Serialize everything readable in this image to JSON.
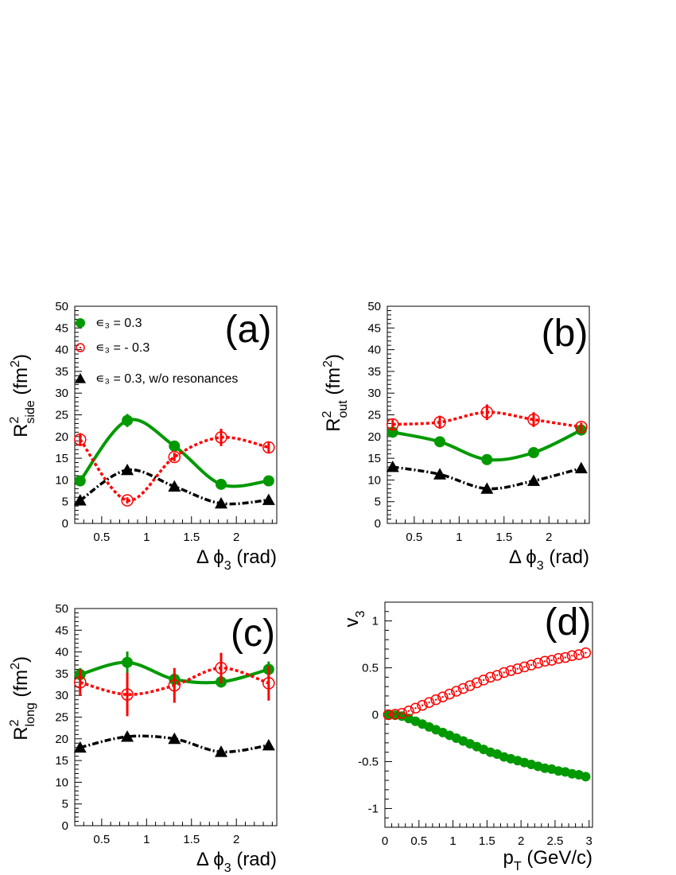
{
  "chart_data": [
    {
      "panel_label": "(a)",
      "type": "scatter",
      "xlabel": {
        "main": "Δ ϕ",
        "sub": "3",
        "rest": " (rad)"
      },
      "ylabel": {
        "main": "R",
        "sup": "2",
        "sub": "side",
        "rest": "  (fm",
        "sup2": "2",
        "close": ")"
      },
      "xlim": [
        0.2,
        2.45
      ],
      "ylim": [
        0,
        50
      ],
      "xticks": [
        0.5,
        1,
        1.5,
        2
      ],
      "xtick_labels": [
        "0.5",
        "1",
        "1.5",
        "2"
      ],
      "yticks": [
        0,
        5,
        10,
        15,
        20,
        25,
        30,
        35,
        40,
        45,
        50
      ],
      "ytick_labels": [
        "0",
        "5",
        "10",
        "15",
        "20",
        "25",
        "30",
        "35",
        "40",
        "45",
        "50"
      ],
      "legend": {
        "position": "top-left",
        "entries": [
          {
            "label": "∊₃ = 0.3",
            "series": 0
          },
          {
            "label": "∊₃ = - 0.3",
            "series": 1
          },
          {
            "label": "∊₃ = 0.3, w/o resonances",
            "series": 2
          }
        ]
      },
      "series": [
        {
          "color": "#009900",
          "marker": "filled-circle",
          "line": "solid",
          "x": [
            0.26,
            0.785,
            1.31,
            1.83,
            2.36
          ],
          "y": [
            9.8,
            23.7,
            17.8,
            9.0,
            9.8
          ],
          "yerr": [
            0.8,
            1.5,
            0.8,
            0.7,
            0.8
          ]
        },
        {
          "color": "#ff0000",
          "marker": "open-circle",
          "line": "dotted",
          "x": [
            0.26,
            0.785,
            1.31,
            1.83,
            2.36
          ],
          "y": [
            19.3,
            5.3,
            15.3,
            19.8,
            17.5
          ],
          "yerr": [
            1.5,
            0.7,
            1.0,
            2.0,
            1.3
          ]
        },
        {
          "color": "#000000",
          "marker": "filled-triangle",
          "line": "dashdot",
          "x": [
            0.26,
            0.785,
            1.31,
            1.83,
            2.36
          ],
          "y": [
            5.3,
            12.3,
            8.5,
            4.6,
            5.4
          ],
          "yerr": [
            0,
            0,
            0,
            0,
            0
          ]
        }
      ]
    },
    {
      "panel_label": "(b)",
      "type": "scatter",
      "xlabel": {
        "main": "Δ ϕ",
        "sub": "3",
        "rest": " (rad)"
      },
      "ylabel": {
        "main": "R",
        "sup": "2",
        "sub": "out",
        "rest": "  (fm",
        "sup2": "2",
        "close": ")"
      },
      "xlim": [
        0.2,
        2.45
      ],
      "ylim": [
        0,
        50
      ],
      "xticks": [
        0.5,
        1,
        1.5,
        2
      ],
      "xtick_labels": [
        "0.5",
        "1",
        "1.5",
        "2"
      ],
      "yticks": [
        0,
        5,
        10,
        15,
        20,
        25,
        30,
        35,
        40,
        45,
        50
      ],
      "ytick_labels": [
        "0",
        "5",
        "10",
        "15",
        "20",
        "25",
        "30",
        "35",
        "40",
        "45",
        "50"
      ],
      "series": [
        {
          "color": "#009900",
          "marker": "filled-circle",
          "line": "solid",
          "x": [
            0.26,
            0.785,
            1.31,
            1.83,
            2.36
          ],
          "y": [
            21.0,
            18.8,
            14.7,
            16.3,
            21.5
          ],
          "yerr": [
            0.8,
            0.7,
            0.5,
            0.6,
            1.0
          ]
        },
        {
          "color": "#ff0000",
          "marker": "open-circle",
          "line": "dotted",
          "x": [
            0.26,
            0.785,
            1.31,
            1.83,
            2.36
          ],
          "y": [
            22.8,
            23.3,
            25.6,
            23.9,
            22.2
          ],
          "yerr": [
            1.3,
            1.5,
            1.8,
            1.7,
            1.0
          ]
        },
        {
          "color": "#000000",
          "marker": "filled-triangle",
          "line": "dashdot",
          "x": [
            0.26,
            0.785,
            1.31,
            1.83,
            2.36
          ],
          "y": [
            13.0,
            11.3,
            8.0,
            9.8,
            12.7
          ],
          "yerr": [
            0,
            0,
            0,
            0,
            0
          ]
        }
      ]
    },
    {
      "panel_label": "(c)",
      "type": "scatter",
      "xlabel": {
        "main": "Δ ϕ",
        "sub": "3",
        "rest": " (rad)"
      },
      "ylabel": {
        "main": "R",
        "sup": "2",
        "sub": "long",
        "rest": "  (fm",
        "sup2": "2",
        "close": ")"
      },
      "xlim": [
        0.2,
        2.45
      ],
      "ylim": [
        0,
        50
      ],
      "xticks": [
        0.5,
        1,
        1.5,
        2
      ],
      "xtick_labels": [
        "0.5",
        "1",
        "1.5",
        "2"
      ],
      "yticks": [
        0,
        5,
        10,
        15,
        20,
        25,
        30,
        35,
        40,
        45,
        50
      ],
      "ytick_labels": [
        "0",
        "5",
        "10",
        "15",
        "20",
        "25",
        "30",
        "35",
        "40",
        "45",
        "50"
      ],
      "series": [
        {
          "color": "#009900",
          "marker": "filled-circle",
          "line": "solid",
          "x": [
            0.26,
            0.785,
            1.31,
            1.83,
            2.36
          ],
          "y": [
            34.8,
            37.6,
            33.7,
            33.1,
            36.0
          ],
          "yerr": [
            1.5,
            2.5,
            1.5,
            1.3,
            1.8
          ]
        },
        {
          "color": "#ff0000",
          "marker": "open-circle",
          "line": "dotted",
          "x": [
            0.26,
            0.785,
            1.31,
            1.83,
            2.36
          ],
          "y": [
            33.0,
            30.2,
            32.3,
            36.3,
            32.8
          ],
          "yerr": [
            3.0,
            5.0,
            4.0,
            3.5,
            4.0
          ]
        },
        {
          "color": "#000000",
          "marker": "filled-triangle",
          "line": "dashdot",
          "x": [
            0.26,
            0.785,
            1.31,
            1.83,
            2.36
          ],
          "y": [
            18.0,
            20.5,
            20.0,
            17.0,
            18.5
          ],
          "yerr": [
            0,
            1.0,
            0,
            0,
            0
          ]
        }
      ]
    },
    {
      "panel_label": "(d)",
      "type": "scatter",
      "xlabel": {
        "main": "p",
        "sub": "T",
        "rest": " (GeV/c)"
      },
      "ylabel": {
        "main": "v",
        "sub": "3"
      },
      "xlim": [
        0,
        3.05
      ],
      "ylim": [
        -1.2,
        1.2
      ],
      "xticks": [
        0,
        0.5,
        1,
        1.5,
        2,
        2.5,
        3
      ],
      "xtick_labels": [
        "0",
        "0.5",
        "1",
        "1.5",
        "2",
        "2.5",
        "3"
      ],
      "yticks": [
        -1,
        -0.5,
        0,
        0.5,
        1
      ],
      "ytick_labels": [
        "-1",
        "-0.5",
        "0",
        "0.5",
        "1"
      ],
      "series": [
        {
          "color": "#009900",
          "marker": "filled-circle",
          "line": "none",
          "x": [
            0.05,
            0.15,
            0.25,
            0.35,
            0.45,
            0.55,
            0.65,
            0.75,
            0.85,
            0.95,
            1.05,
            1.15,
            1.25,
            1.35,
            1.45,
            1.55,
            1.65,
            1.75,
            1.85,
            1.95,
            2.05,
            2.15,
            2.25,
            2.35,
            2.45,
            2.55,
            2.65,
            2.75,
            2.85,
            2.95
          ],
          "y": [
            0.0,
            -0.005,
            -0.015,
            -0.04,
            -0.07,
            -0.1,
            -0.13,
            -0.16,
            -0.19,
            -0.22,
            -0.25,
            -0.28,
            -0.31,
            -0.34,
            -0.37,
            -0.4,
            -0.42,
            -0.45,
            -0.47,
            -0.49,
            -0.51,
            -0.53,
            -0.55,
            -0.57,
            -0.58,
            -0.6,
            -0.61,
            -0.63,
            -0.64,
            -0.66
          ]
        },
        {
          "color": "#ff0000",
          "marker": "open-circle",
          "line": "none",
          "x": [
            0.05,
            0.15,
            0.25,
            0.35,
            0.45,
            0.55,
            0.65,
            0.75,
            0.85,
            0.95,
            1.05,
            1.15,
            1.25,
            1.35,
            1.45,
            1.55,
            1.65,
            1.75,
            1.85,
            1.95,
            2.05,
            2.15,
            2.25,
            2.35,
            2.45,
            2.55,
            2.65,
            2.75,
            2.85,
            2.95
          ],
          "y": [
            0.0,
            0.005,
            0.015,
            0.04,
            0.07,
            0.1,
            0.13,
            0.16,
            0.19,
            0.22,
            0.25,
            0.28,
            0.31,
            0.34,
            0.37,
            0.4,
            0.42,
            0.45,
            0.47,
            0.49,
            0.51,
            0.53,
            0.55,
            0.57,
            0.58,
            0.6,
            0.61,
            0.63,
            0.64,
            0.66
          ]
        }
      ]
    }
  ]
}
